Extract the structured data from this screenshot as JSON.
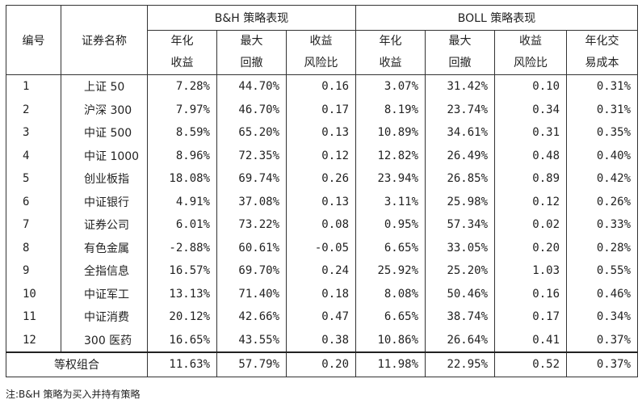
{
  "table": {
    "col_id": "编号",
    "col_name": "证券名称",
    "group_bh": "B&H 策略表现",
    "group_boll": "BOLL 策略表现",
    "sub_headers": {
      "ann_return": [
        "年化",
        "收益"
      ],
      "max_drawdown": [
        "最大",
        "回撤"
      ],
      "return_risk": [
        "收益",
        "风险比"
      ],
      "ann_cost": [
        "年化交",
        "易成本"
      ]
    },
    "rows": [
      {
        "id": "1",
        "name": "上证 50",
        "bh_ret": "7.28%",
        "bh_dd": "44.70%",
        "bh_rr": "0.16",
        "boll_ret": "3.07%",
        "boll_dd": "31.42%",
        "boll_rr": "0.10",
        "boll_cost": "0.31%"
      },
      {
        "id": "2",
        "name": "沪深 300",
        "bh_ret": "7.97%",
        "bh_dd": "46.70%",
        "bh_rr": "0.17",
        "boll_ret": "8.19%",
        "boll_dd": "23.74%",
        "boll_rr": "0.34",
        "boll_cost": "0.31%"
      },
      {
        "id": "3",
        "name": "中证 500",
        "bh_ret": "8.59%",
        "bh_dd": "65.20%",
        "bh_rr": "0.13",
        "boll_ret": "10.89%",
        "boll_dd": "34.61%",
        "boll_rr": "0.31",
        "boll_cost": "0.35%"
      },
      {
        "id": "4",
        "name": "中证 1000",
        "bh_ret": "8.96%",
        "bh_dd": "72.35%",
        "bh_rr": "0.12",
        "boll_ret": "12.82%",
        "boll_dd": "26.49%",
        "boll_rr": "0.48",
        "boll_cost": "0.40%"
      },
      {
        "id": "5",
        "name": "创业板指",
        "bh_ret": "18.08%",
        "bh_dd": "69.74%",
        "bh_rr": "0.26",
        "boll_ret": "23.94%",
        "boll_dd": "26.85%",
        "boll_rr": "0.89",
        "boll_cost": "0.42%"
      },
      {
        "id": "6",
        "name": "中证银行",
        "bh_ret": "4.91%",
        "bh_dd": "37.08%",
        "bh_rr": "0.13",
        "boll_ret": "3.11%",
        "boll_dd": "25.98%",
        "boll_rr": "0.12",
        "boll_cost": "0.26%"
      },
      {
        "id": "7",
        "name": "证券公司",
        "bh_ret": "6.01%",
        "bh_dd": "73.22%",
        "bh_rr": "0.08",
        "boll_ret": "0.95%",
        "boll_dd": "57.34%",
        "boll_rr": "0.02",
        "boll_cost": "0.33%"
      },
      {
        "id": "8",
        "name": "有色金属",
        "bh_ret": "-2.88%",
        "bh_dd": "60.61%",
        "bh_rr": "-0.05",
        "boll_ret": "6.65%",
        "boll_dd": "33.05%",
        "boll_rr": "0.20",
        "boll_cost": "0.28%"
      },
      {
        "id": "9",
        "name": "全指信息",
        "bh_ret": "16.57%",
        "bh_dd": "69.70%",
        "bh_rr": "0.24",
        "boll_ret": "25.92%",
        "boll_dd": "25.20%",
        "boll_rr": "1.03",
        "boll_cost": "0.55%"
      },
      {
        "id": "10",
        "name": "中证军工",
        "bh_ret": "13.13%",
        "bh_dd": "71.40%",
        "bh_rr": "0.18",
        "boll_ret": "8.08%",
        "boll_dd": "50.46%",
        "boll_rr": "0.16",
        "boll_cost": "0.46%"
      },
      {
        "id": "11",
        "name": "中证消费",
        "bh_ret": "20.12%",
        "bh_dd": "42.66%",
        "bh_rr": "0.47",
        "boll_ret": "6.65%",
        "boll_dd": "38.74%",
        "boll_rr": "0.17",
        "boll_cost": "0.34%"
      },
      {
        "id": "12",
        "name": "300 医药",
        "bh_ret": "16.65%",
        "bh_dd": "43.55%",
        "bh_rr": "0.38",
        "boll_ret": "10.86%",
        "boll_dd": "26.64%",
        "boll_rr": "0.41",
        "boll_cost": "0.37%"
      }
    ],
    "total": {
      "label": "等权组合",
      "bh_ret": "11.63%",
      "bh_dd": "57.79%",
      "bh_rr": "0.20",
      "boll_ret": "11.98%",
      "boll_dd": "22.95%",
      "boll_rr": "0.52",
      "boll_cost": "0.37%"
    }
  },
  "note": "注:B&H 策略为买入并持有策略"
}
